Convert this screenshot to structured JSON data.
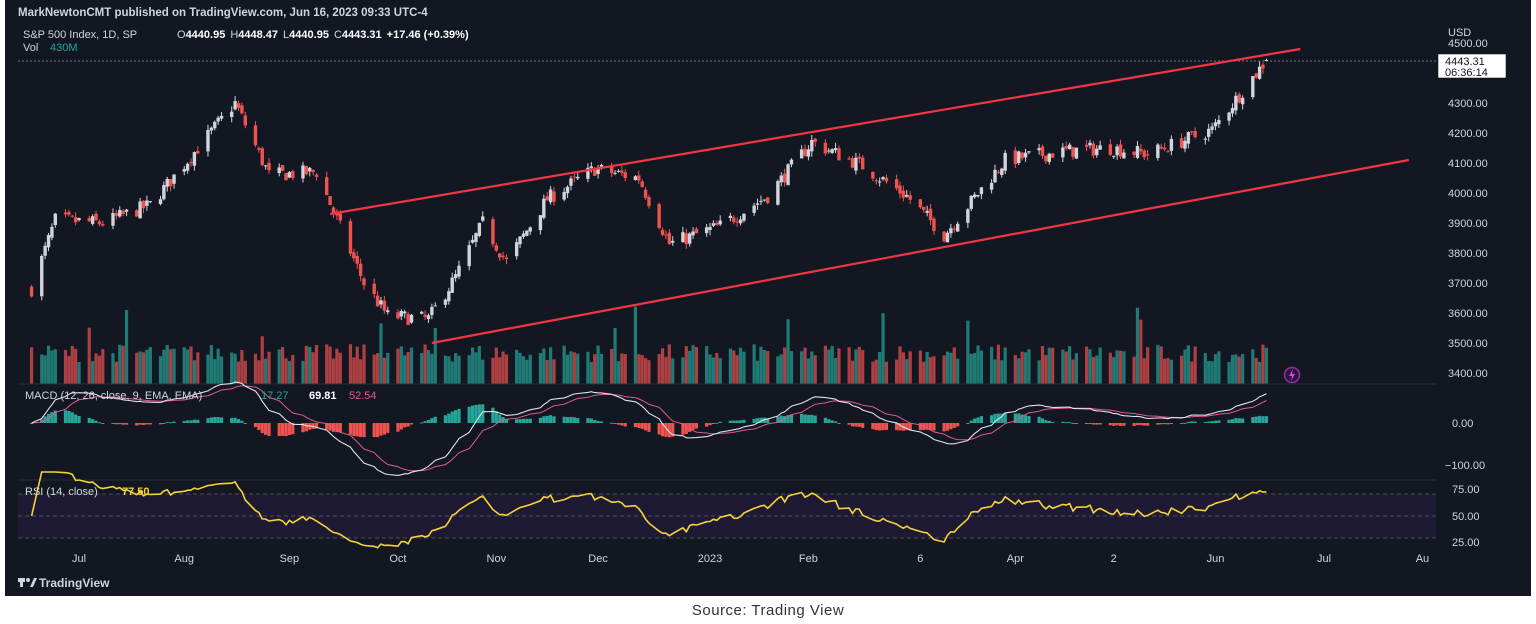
{
  "header": {
    "published": "MarkNewtonCMT published on TradingView.com, Jun 16, 2023 09:33 UTC-4",
    "symbol": "S&P 500 Index, 1D, SP",
    "o_label": "O",
    "o_value": "4440.95",
    "h_label": "H",
    "h_value": "4448.47",
    "l_label": "L",
    "l_value": "4440.95",
    "c_label": "C",
    "c_value": "4443.31",
    "change": "+17.46 (+0.39%)",
    "vol_label": "Vol",
    "vol_value": "430M"
  },
  "price_axis": {
    "currency": "USD",
    "ticks": [
      "4500.00",
      "4400.00",
      "4300.00",
      "4200.00",
      "4100.00",
      "4000.00",
      "3900.00",
      "3800.00",
      "3700.00",
      "3600.00",
      "3500.00",
      "3400.00"
    ],
    "last_price": "4443.31",
    "countdown": "06:36:14"
  },
  "macd": {
    "label": "MACD (12, 26, close, 9, EMA, EMA)",
    "v1": "17.27",
    "v2": "69.81",
    "v3": "52.54",
    "ticks": [
      "0.00",
      "−100.00"
    ]
  },
  "rsi": {
    "label": "RSI (14, close)",
    "value": "77.50",
    "ticks": [
      "75.00",
      "50.00",
      "25.00"
    ]
  },
  "time_axis": [
    "Jul",
    "Aug",
    "Sep",
    "Oct",
    "Nov",
    "Dec",
    "2023",
    "Feb",
    "6",
    "Apr",
    "2",
    "Jun",
    "Jul",
    "Au"
  ],
  "branding": {
    "logo_text": "TradingView"
  },
  "source": "Source:  Trading View",
  "colors": {
    "background": "#131722",
    "up": "#d1d4dc",
    "down": "#ef5350",
    "vol_up": "#26a69a",
    "vol_down": "#ef5350",
    "channel": "#f23645",
    "rsi": "#f5d33a",
    "macd_line": "#e0e3eb",
    "signal_line": "#e05a8a"
  },
  "chart_data": {
    "type": "candlestick",
    "title": "S&P 500 Index, 1D, SP",
    "ylabel": "USD",
    "ylim": [
      3380,
      4510
    ],
    "x_labels": [
      "Jul",
      "Aug",
      "Sep",
      "Oct",
      "Nov",
      "Dec",
      "2023",
      "Feb",
      "6",
      "Apr",
      "2",
      "Jun",
      "Jul",
      "Au"
    ],
    "close_series": {
      "dates": [
        "2022-06-17",
        "2022-06-24",
        "2022-07-08",
        "2022-07-22",
        "2022-08-05",
        "2022-08-16",
        "2022-08-26",
        "2022-09-09",
        "2022-09-23",
        "2022-09-30",
        "2022-10-12",
        "2022-10-20",
        "2022-10-28",
        "2022-11-04",
        "2022-11-16",
        "2022-11-30",
        "2022-12-13",
        "2022-12-22",
        "2023-01-06",
        "2023-01-20",
        "2023-02-02",
        "2023-02-17",
        "2023-03-02",
        "2023-03-13",
        "2023-03-31",
        "2023-04-18",
        "2023-05-01",
        "2023-05-12",
        "2023-05-31",
        "2023-06-16"
      ],
      "values": [
        3680,
        3910,
        3900,
        3960,
        4150,
        4300,
        4060,
        4070,
        3700,
        3590,
        3580,
        3720,
        3900,
        3770,
        3980,
        4080,
        4050,
        3830,
        3890,
        3990,
        4170,
        4090,
        3990,
        3860,
        4110,
        4140,
        4150,
        4130,
        4210,
        4443
      ]
    },
    "volume_series": {
      "unit": "shares",
      "last": "430M"
    },
    "macd": {
      "params": "12, 26, close, 9, EMA, EMA",
      "histogram": 17.27,
      "macd": 69.81,
      "signal": 52.54
    },
    "rsi": {
      "params": "14, close",
      "value": 77.5,
      "bands": [
        30,
        50,
        70
      ]
    },
    "channel_lines": [
      {
        "from": [
          "2022-09-13",
          3930
        ],
        "to": [
          "2023-06-26",
          4480
        ]
      },
      {
        "from": [
          "2022-10-13",
          3500
        ],
        "to": [
          "2023-07-28",
          4110
        ]
      }
    ]
  }
}
